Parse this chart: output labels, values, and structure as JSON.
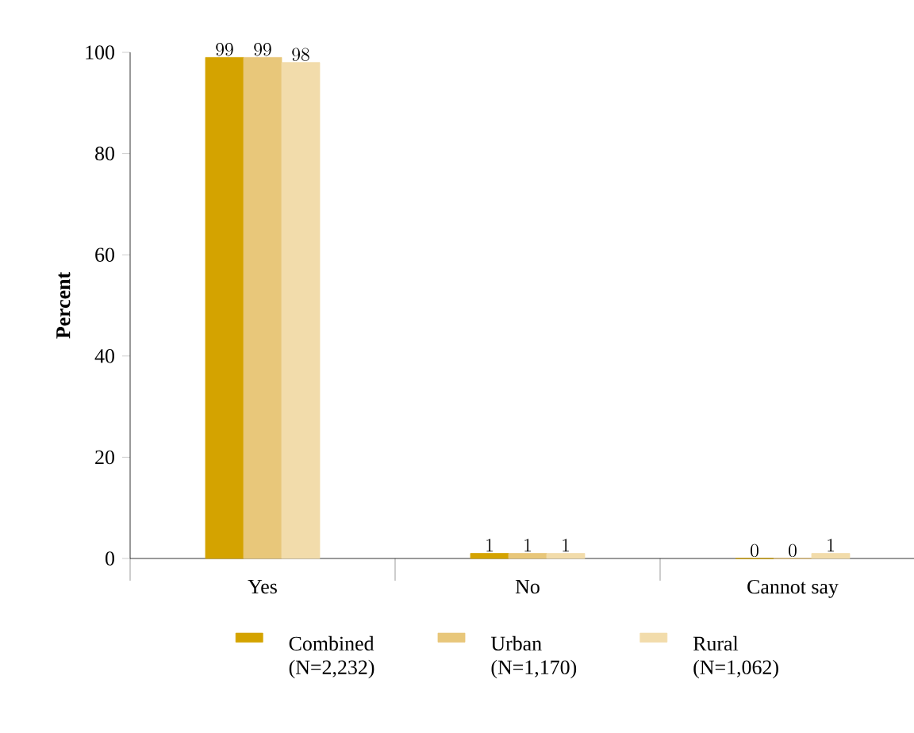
{
  "chart_data": {
    "type": "bar",
    "ylabel": "Percent",
    "categories": [
      "Yes",
      "No",
      "Cannot say"
    ],
    "series": [
      {
        "name": "Combined (N=2,232)",
        "color": "#d4a300",
        "values": [
          99,
          1,
          0
        ]
      },
      {
        "name": "Urban (N=1,170)",
        "color": "#e8c77a",
        "values": [
          99,
          1,
          0
        ]
      },
      {
        "name": "Rural (N=1,062)",
        "color": "#f2dcab",
        "values": [
          98,
          1,
          1
        ]
      }
    ],
    "ylim": [
      0,
      100
    ],
    "yticks": [
      0,
      20,
      40,
      60,
      80,
      100
    ],
    "data_labels": true,
    "legend": "bottom",
    "grid": false
  }
}
